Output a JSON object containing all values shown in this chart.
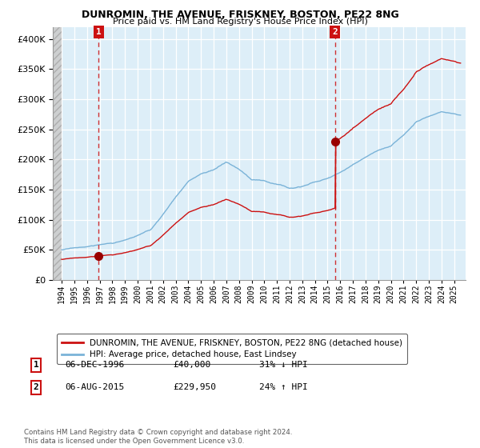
{
  "title": "DUNROMIN, THE AVENUE, FRISKNEY, BOSTON, PE22 8NG",
  "subtitle": "Price paid vs. HM Land Registry's House Price Index (HPI)",
  "legend_line1": "DUNROMIN, THE AVENUE, FRISKNEY, BOSTON, PE22 8NG (detached house)",
  "legend_line2": "HPI: Average price, detached house, East Lindsey",
  "annotation1_date": "06-DEC-1996",
  "annotation1_price": 40000,
  "annotation1_price_str": "£40,000",
  "annotation1_pct": "31% ↓ HPI",
  "annotation1_year": 1996.92,
  "annotation2_date": "06-AUG-2015",
  "annotation2_price": 229950,
  "annotation2_price_str": "£229,950",
  "annotation2_year": 2015.6,
  "annotation2_pct": "24% ↑ HPI",
  "hpi_color": "#7ab3d8",
  "hpi_fill_color": "#ddeef8",
  "price_color": "#cc1111",
  "sale_dot_color": "#990000",
  "annotation_box_color": "#cc1111",
  "plot_bg_color": "#ddeef8",
  "ylim_max": 420000,
  "footer_text": "Contains HM Land Registry data © Crown copyright and database right 2024.\nThis data is licensed under the Open Government Licence v3.0."
}
